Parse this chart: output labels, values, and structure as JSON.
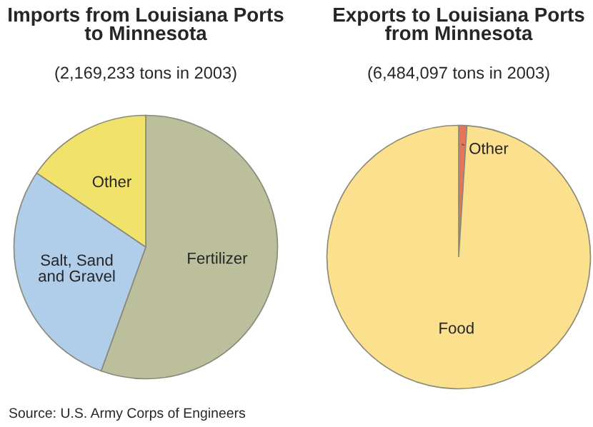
{
  "chart_data": [
    {
      "type": "pie",
      "title": "Imports from Louisiana Ports\nto Minnesota",
      "subtitle": "(2,169,233 tons in 2003)",
      "categories": [
        "Fertilizer",
        "Salt, Sand\nand Gravel",
        "Other"
      ],
      "values": [
        55.5,
        29,
        15.5
      ],
      "colors": [
        "#bcbf9c",
        "#b0cdea",
        "#f0e26a"
      ],
      "annotations": [
        "Source: U.S. Army Corps of Engineers"
      ]
    },
    {
      "type": "pie",
      "title": "Exports to Louisiana Ports\nfrom Minnesota",
      "subtitle": "(6,484,097 tons in 2003)",
      "categories": [
        "Other",
        "Food"
      ],
      "values": [
        1,
        99
      ],
      "colors": [
        "#e8735a",
        "#fbe08e"
      ]
    }
  ]
}
